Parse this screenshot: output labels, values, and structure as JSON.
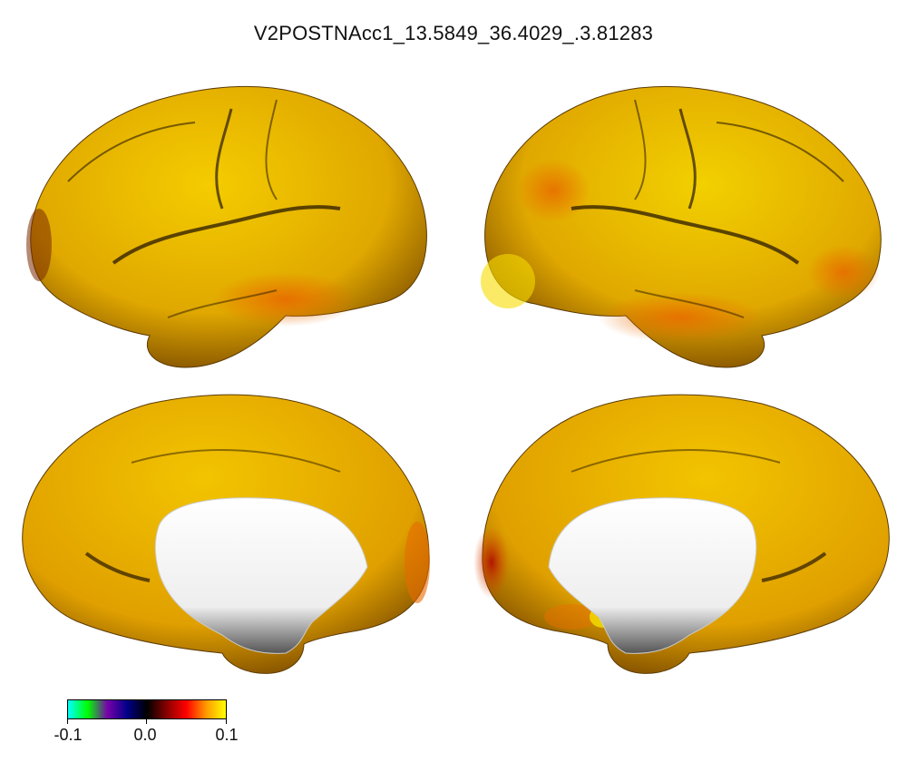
{
  "title": "V2POSTNAcc1_13.5849_36.4029_.3.81283",
  "colorbar": {
    "min_label": "-0.1",
    "mid_label": "0.0",
    "max_label": "0.1",
    "colors": [
      "#00ffff",
      "#00ff00",
      "#7700aa",
      "#000088",
      "#000000",
      "#880000",
      "#ff0000",
      "#ff9900",
      "#ffff00"
    ]
  },
  "views": [
    {
      "name": "left-lateral"
    },
    {
      "name": "right-lateral"
    },
    {
      "name": "left-medial"
    },
    {
      "name": "right-medial"
    }
  ],
  "colors": {
    "cortex_base": "#e8b000",
    "cortex_light": "#f5d000",
    "cortex_hot": "#e57a00",
    "cortex_deep": "#8a2a00",
    "medial_wall": "#ffffff"
  }
}
